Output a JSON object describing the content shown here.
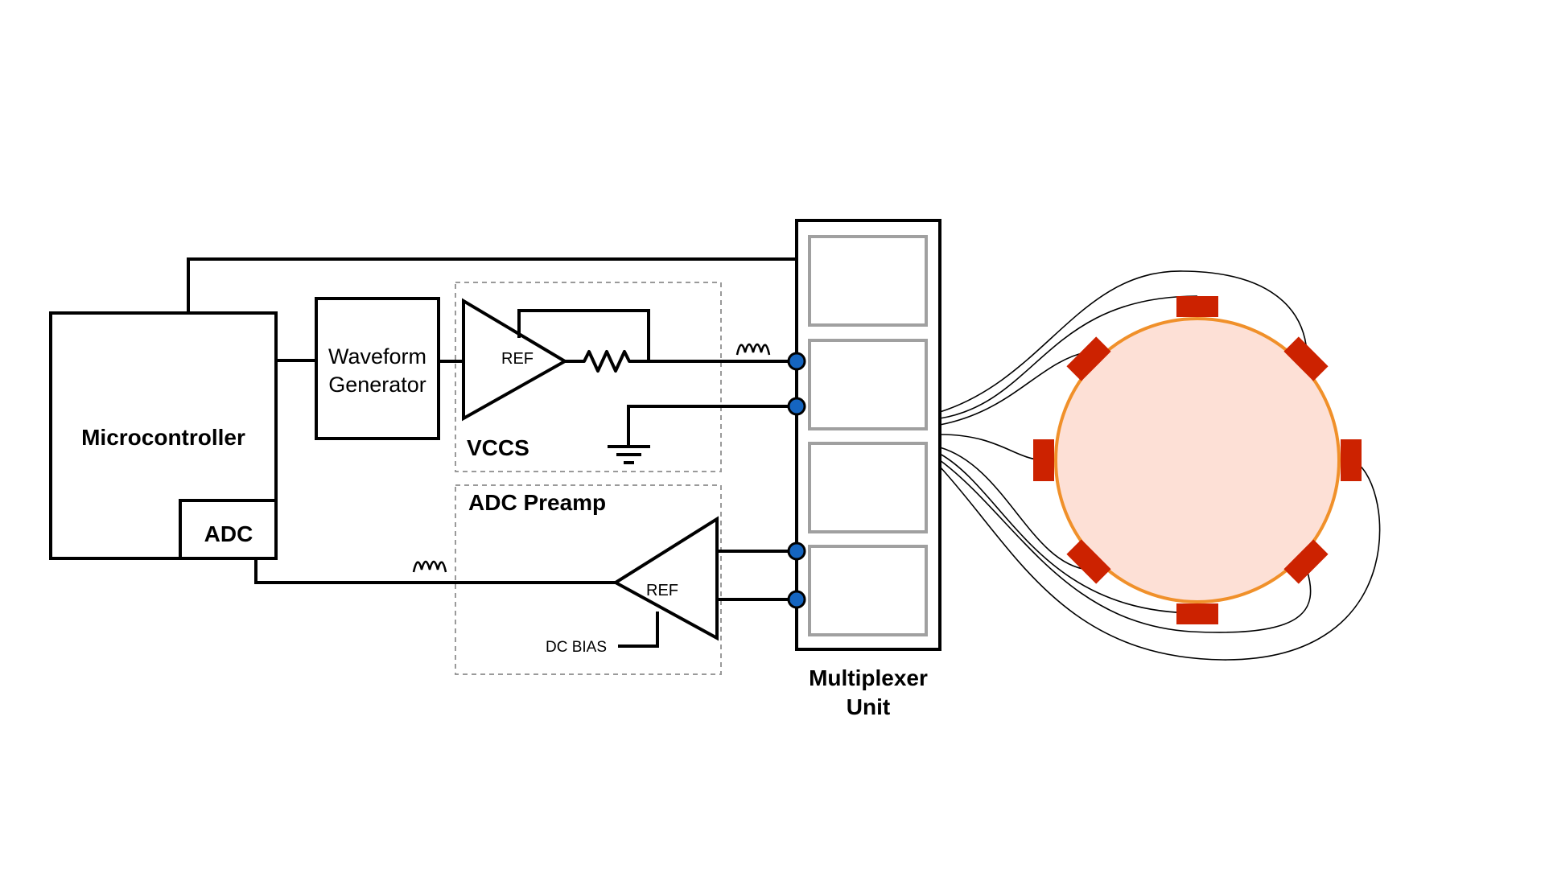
{
  "labels": {
    "microcontroller": "Microcontroller",
    "adc": "ADC",
    "waveform_line1": "Waveform",
    "waveform_line2": "Generator",
    "vccs_ref": "REF",
    "vccs": "VCCS",
    "adc_preamp": "ADC Preamp",
    "preamp_ref": "REF",
    "dc_bias": "DC BIAS",
    "mux_line1": "Multiplexer",
    "mux_line2": "Unit"
  },
  "colors": {
    "stroke": "#000000",
    "mux_slot": "#a0a0a0",
    "dashed_box": "#9a9a9a",
    "node_fill": "#1565c0",
    "ring_fill": "#fde0d6",
    "ring_stroke": "#f0902a",
    "electrode": "#cc2200"
  },
  "electrode_count": 8
}
